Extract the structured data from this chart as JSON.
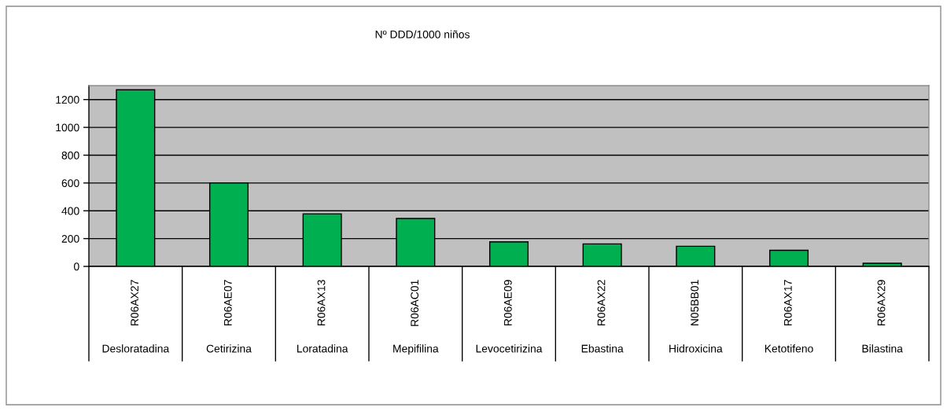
{
  "chart_data": {
    "type": "bar",
    "title": "Nº DDD/1000 niños",
    "categories": [
      "R06AX27\nDesloratadina",
      "R06AE07\nCetirizina",
      "R06AX13\nLoratadina",
      "R06AC01\nMepifilina",
      "R06AE09\nLevocetirizina",
      "R06AX22\nEbastina",
      "N05BB01\nHidroxicina",
      "R06AX17\nKetotifeno",
      "R06AX29\nBilastina"
    ],
    "values": [
      1270,
      600,
      378,
      345,
      177,
      162,
      145,
      116,
      23
    ],
    "color": "#00b050",
    "ylim": [
      0,
      1300
    ],
    "yticks": [
      0,
      200,
      400,
      600,
      800,
      1000,
      1200
    ],
    "grid": "y"
  }
}
